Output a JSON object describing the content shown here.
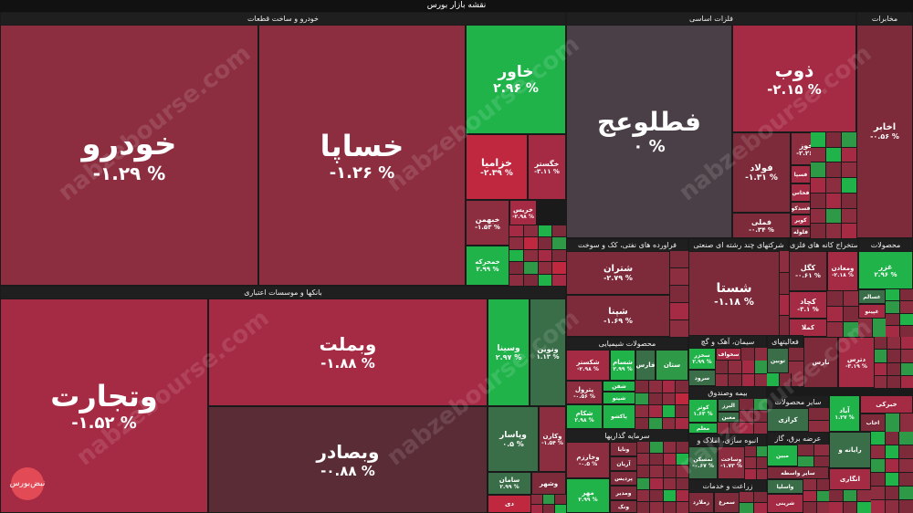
{
  "title": "نقشه بازار بورس",
  "sections": {
    "auto": "خودرو و ساخت قطعات",
    "banks": "بانکها و موسسات اعتباری",
    "metals": "فلزات اساسی",
    "mining": "مخابرات",
    "oil": "فراورده های نفتی، کک و سوخت",
    "multi": "شرکتهای چند رشته ای صنعتی",
    "extract": "استخراج کانه های فلزی",
    "products": "محصولات",
    "chem": "محصولات شیمیایی",
    "cement": "سیمان، آهک و گچ",
    "activity": "فعالیتهای",
    "insurance": "بیمه وصندوق",
    "invest": "سرمایه گذاریها",
    "mass": "انبوه سازی، املاک و",
    "other_products": "سایر محصولات",
    "supply": "عرضه برق، گاز",
    "agri": "زراعت و خدمات"
  },
  "tiles": {
    "khodro": {
      "name": "خودرو",
      "pct": "-۱.۲۹ %"
    },
    "khsapa": {
      "name": "خساپا",
      "pct": "-۱.۲۶ %"
    },
    "khavar": {
      "name": "خاور",
      "pct": "۲.۹۶ %"
    },
    "khzamia": {
      "name": "خزامیا",
      "pct": "-۲.۳۹ %"
    },
    "khgostar": {
      "name": "خگستر",
      "pct": "-۳.۱۱ %"
    },
    "khbahman": {
      "name": "خبهمن",
      "pct": "-۱.۵۳ %"
    },
    "kharis": {
      "name": "خریس",
      "pct": "-۲.۹۸ %"
    },
    "khomehreh": {
      "name": "خمحرکه",
      "pct": "۲.۹۹ %"
    },
    "vtejarat": {
      "name": "وتجارت",
      "pct": "-۱.۵۲ %"
    },
    "vbmellat": {
      "name": "وبملت",
      "pct": "-۱.۸۸ %"
    },
    "vbsader": {
      "name": "وبصادر",
      "pct": "-۰.۸۸ %"
    },
    "vsina": {
      "name": "وسینا",
      "pct": "۲.۹۷ %"
    },
    "vnovin": {
      "name": "ونوین",
      "pct": "۱.۱۳ %"
    },
    "vpasar": {
      "name": "وپاسار",
      "pct": "۰.۵ %"
    },
    "vkaran": {
      "name": "وکارن",
      "pct": "-۱.۵۴ %"
    },
    "saman": {
      "name": "سامان",
      "pct": "۲.۹۹ %"
    },
    "vshahr": {
      "name": "وشهر",
      "pct": ""
    },
    "di": {
      "name": "دی",
      "pct": ""
    },
    "folad_kh": {
      "name": "فطلوعج",
      "pct": "۰ %"
    },
    "zob": {
      "name": "ذوب",
      "pct": "-۲.۱۵ %"
    },
    "folad": {
      "name": "فولاد",
      "pct": "-۱.۳۱ %"
    },
    "fameli": {
      "name": "فملی",
      "pct": "-۰.۳۴ %"
    },
    "khouz": {
      "name": "فخوز",
      "pct": "-۲.۲۶ %"
    },
    "fasapa": {
      "name": "فسپا",
      "pct": ""
    },
    "fkhas": {
      "name": "فخاس",
      "pct": ""
    },
    "fsadko": {
      "name": "فسدکو",
      "pct": ""
    },
    "foveir": {
      "name": "کویر",
      "pct": ""
    },
    "folah": {
      "name": "فلوله",
      "pct": ""
    },
    "akhabar": {
      "name": "اخابر",
      "pct": "-۰.۵۶ %"
    },
    "shetran": {
      "name": "شتران",
      "pct": "-۲.۷۹ %"
    },
    "shepna": {
      "name": "شپنا",
      "pct": "-۱.۶۹ %"
    },
    "shasta": {
      "name": "شستا",
      "pct": "-۱.۱۸ %"
    },
    "kegl": {
      "name": "کگل",
      "pct": "-۰.۶۱ %"
    },
    "vamaadan": {
      "name": "ومعادن",
      "pct": "-۲.۱۸ %"
    },
    "kechad": {
      "name": "کچاد",
      "pct": "-۳.۱ %"
    },
    "kamala": {
      "name": "کملا",
      "pct": ""
    },
    "ghazar": {
      "name": "غزر",
      "pct": "۲.۹۶ %"
    },
    "ghasalam": {
      "name": "غسالم",
      "pct": ""
    },
    "ghpinu": {
      "name": "غپینو",
      "pct": ""
    },
    "shakestar": {
      "name": "شکستر",
      "pct": "-۲.۹۸ %"
    },
    "shesham": {
      "name": "شسام",
      "pct": "۲.۹۹ %"
    },
    "fares": {
      "name": "فارس",
      "pct": ""
    },
    "setan": {
      "name": "ستان",
      "pct": ""
    },
    "petrol": {
      "name": "پترول",
      "pct": "-۰.۵۶ %"
    },
    "shafan": {
      "name": "شفن",
      "pct": ""
    },
    "shitou": {
      "name": "شیتو",
      "pct": ""
    },
    "shekam": {
      "name": "شکام",
      "pct": "۲.۹۸ %"
    },
    "pakshou": {
      "name": "پاکشو",
      "pct": ""
    },
    "sekhvaf": {
      "name": "سخواف",
      "pct": ""
    },
    "sakhazar": {
      "name": "سخزر",
      "pct": "۲.۹۹ %"
    },
    "sarood": {
      "name": "سرود",
      "pct": ""
    },
    "toobin": {
      "name": "توبین",
      "pct": ""
    },
    "nares": {
      "name": "نارس",
      "pct": ""
    },
    "kowthar": {
      "name": "کوثر",
      "pct": "۱.۶۳ %"
    },
    "albarz": {
      "name": "البرز",
      "pct": ""
    },
    "maaben": {
      "name": "معبن",
      "pct": ""
    },
    "maalem": {
      "name": "معلم",
      "pct": ""
    },
    "vkharazm": {
      "name": "وخارزم",
      "pct": "-۰.۵ %"
    },
    "vaniya": {
      "name": "ونایا",
      "pct": ""
    },
    "vabran": {
      "name": "آریان",
      "pct": ""
    },
    "pardis": {
      "name": "پردیس",
      "pct": ""
    },
    "mehr": {
      "name": "مهر",
      "pct": "۲.۹۹ %"
    },
    "vmodir": {
      "name": "ومدیر",
      "pct": ""
    },
    "vanak": {
      "name": "ونک",
      "pct": ""
    },
    "thmasken": {
      "name": "ثمسکن",
      "pct": "-۰.۶۷ %"
    },
    "vsakhet": {
      "name": "وساخت",
      "pct": "-۱.۷۳ %"
    },
    "zmilan": {
      "name": "زملارد",
      "pct": ""
    },
    "semrgh": {
      "name": "سمرغ",
      "pct": ""
    },
    "kerazi": {
      "name": "کرازی",
      "pct": ""
    },
    "zarinah": {
      "name": "ریل",
      "pct": ""
    },
    "mobin": {
      "name": "مبین",
      "pct": ""
    },
    "sayer": {
      "name": "سایر واسطه",
      "pct": ""
    },
    "vaslia": {
      "name": "واسلیا",
      "pct": ""
    },
    "sharin": {
      "name": "شرینی",
      "pct": ""
    },
    "abad": {
      "name": "آباد",
      "pct": "۱.۲۷ %"
    },
    "ratian": {
      "name": "رایانه و",
      "pct": ""
    },
    "angaari": {
      "name": "انگاری",
      "pct": ""
    },
    "daras": {
      "name": "دترس",
      "pct": "-۳.۱۹ %"
    },
    "kharazmi": {
      "name": "خبرکی",
      "pct": ""
    },
    "ezhab": {
      "name": "اخاب",
      "pct": ""
    }
  },
  "watermark": "nabzebourse.com",
  "logo_text": "نبض‌بورس",
  "colors": {
    "red_dark": "#7d2a3a",
    "red": "#a52a44",
    "green": "#1fb34a",
    "neutral": "#4a3f46"
  }
}
